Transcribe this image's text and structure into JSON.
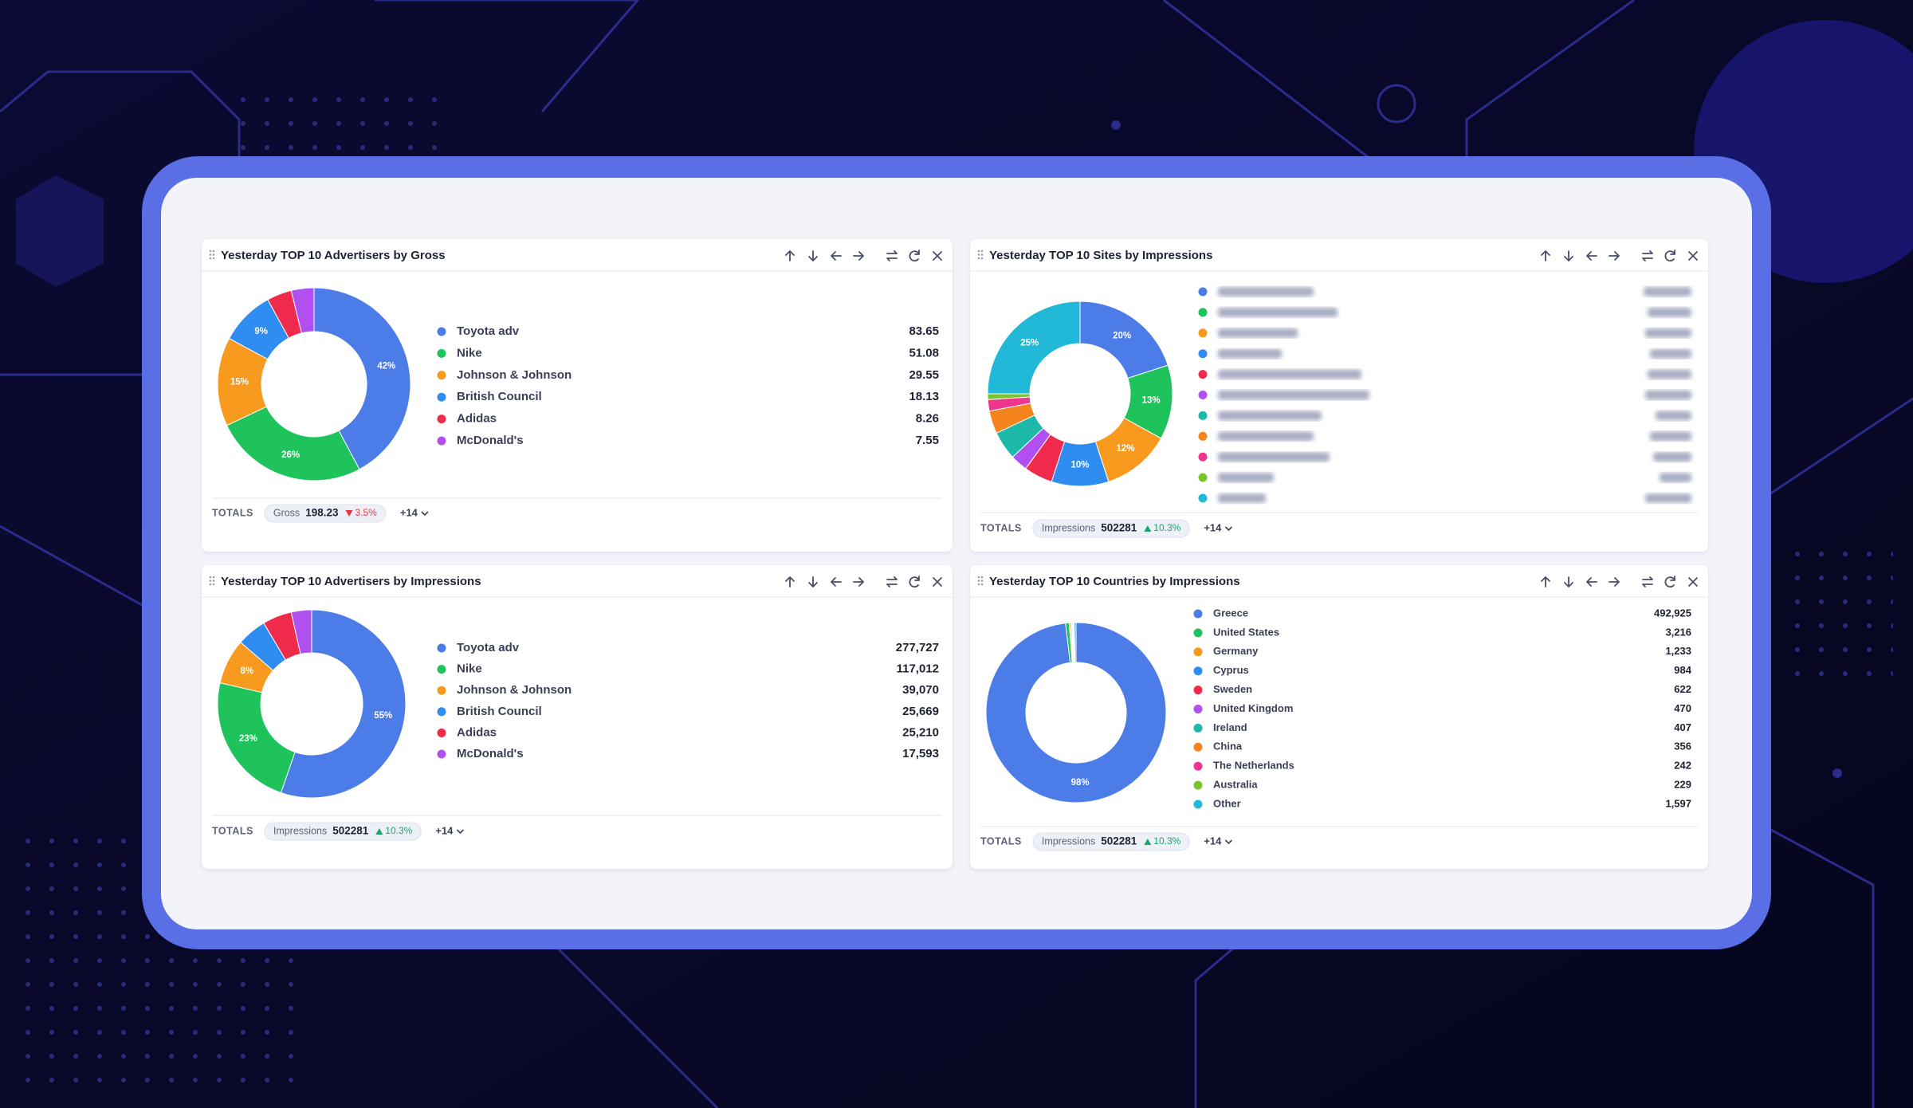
{
  "chart_data": [
    {
      "type": "pie",
      "donut": true,
      "title": "Yesterday TOP 10 Advertisers by Gross",
      "categories": [
        "Toyota adv",
        "Nike",
        "Johnson & Johnson",
        "British Council",
        "Adidas",
        "McDonald's"
      ],
      "values": [
        83.65,
        51.08,
        29.55,
        18.13,
        8.26,
        7.55
      ],
      "slice_labels": [
        "42%",
        "26%",
        "15%",
        "9%",
        null,
        null
      ],
      "colors": [
        "#4c7ce8",
        "#1ec45b",
        "#f79a1e",
        "#2f8cf0",
        "#f02a4a",
        "#b14ff0"
      ],
      "totals": {
        "label": "TOTALS",
        "metric": "Gross",
        "total": 198.23,
        "change": "3.5%",
        "direction": "down",
        "more": "+14"
      }
    },
    {
      "type": "pie",
      "donut": true,
      "title": "Yesterday TOP 10 Sites by Impressions",
      "categories": [
        null,
        null,
        null,
        null,
        null,
        null,
        null,
        null,
        null,
        null,
        null
      ],
      "values": [
        20,
        13,
        12,
        10,
        5,
        3,
        5,
        4,
        2,
        1,
        25
      ],
      "slice_labels": [
        "20%",
        "13%",
        "12%",
        "10%",
        null,
        null,
        null,
        null,
        null,
        null,
        "25%"
      ],
      "colors": [
        "#4c7ce8",
        "#1ec45b",
        "#f79a1e",
        "#2f8cf0",
        "#f02a4a",
        "#b14ff0",
        "#1cb8a8",
        "#f5841f",
        "#f0358f",
        "#7ac52a",
        "#22b8d8"
      ],
      "totals": {
        "label": "TOTALS",
        "metric": "Impressions",
        "total": 502281,
        "change": "10.3%",
        "direction": "up",
        "more": "+14"
      }
    },
    {
      "type": "pie",
      "donut": true,
      "title": "Yesterday TOP 10 Advertisers by Impressions",
      "categories": [
        "Toyota adv",
        "Nike",
        "Johnson & Johnson",
        "British Council",
        "Adidas",
        "McDonald's"
      ],
      "values": [
        277727,
        117012,
        39070,
        25669,
        25210,
        17593
      ],
      "value_labels": [
        "277,727",
        "117,012",
        "39,070",
        "25,669",
        "25,210",
        "17,593"
      ],
      "slice_labels": [
        "55%",
        "23%",
        "8%",
        null,
        null,
        null
      ],
      "colors": [
        "#4c7ce8",
        "#1ec45b",
        "#f79a1e",
        "#2f8cf0",
        "#f02a4a",
        "#b14ff0"
      ],
      "totals": {
        "label": "TOTALS",
        "metric": "Impressions",
        "total": 502281,
        "change": "10.3%",
        "direction": "up",
        "more": "+14"
      }
    },
    {
      "type": "pie",
      "donut": true,
      "title": "Yesterday TOP 10 Countries by Impressions",
      "categories": [
        "Greece",
        "United States",
        "Germany",
        "Cyprus",
        "Sweden",
        "United Kingdom",
        "Ireland",
        "China",
        "The Netherlands",
        "Australia",
        "Other"
      ],
      "values": [
        492925,
        3216,
        1233,
        984,
        622,
        470,
        407,
        356,
        242,
        229,
        1597
      ],
      "value_labels": [
        "492,925",
        "3,216",
        "1,233",
        "984",
        "622",
        "470",
        "407",
        "356",
        "242",
        "229",
        "1,597"
      ],
      "slice_labels": [
        "98%",
        null,
        null,
        null,
        null,
        null,
        null,
        null,
        null,
        null,
        null
      ],
      "colors": [
        "#4c7ce8",
        "#1ec45b",
        "#f79a1e",
        "#2f8cf0",
        "#f02a4a",
        "#b14ff0",
        "#1cb8a8",
        "#f5841f",
        "#f0358f",
        "#7ac52a",
        "#22b8d8"
      ],
      "totals": {
        "label": "TOTALS",
        "metric": "Impressions",
        "total": 502281,
        "change": "10.3%",
        "direction": "up",
        "more": "+14"
      }
    }
  ]
}
